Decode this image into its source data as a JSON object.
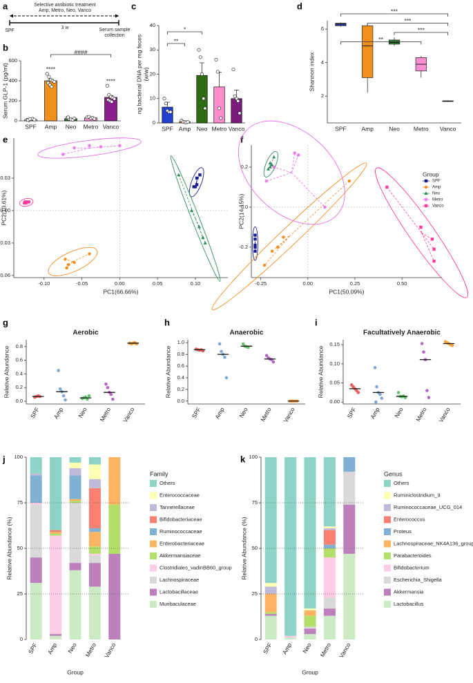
{
  "timeline": {
    "label": "a",
    "treatment": "Selective antibiotic treatment",
    "drugs": "Amp, Metro, Neo, Vanco",
    "start": "SPF",
    "duration": "3 w",
    "end": [
      "Serum sample",
      "collection"
    ]
  },
  "chart_data": [
    {
      "type": "bar",
      "label": "b",
      "ylabel": "Serum GLP-1 (pg/ml)",
      "categories": [
        "SPF",
        "Amp",
        "Neo",
        "Metro",
        "Vanco"
      ],
      "values": [
        13,
        400,
        22,
        30,
        235
      ],
      "errors": [
        3,
        15,
        4,
        4,
        18
      ],
      "points": [
        [
          10,
          5,
          15,
          20,
          12,
          8,
          18
        ],
        [
          470,
          440,
          410,
          400,
          390,
          380,
          360,
          340
        ],
        [
          30,
          20,
          15,
          10,
          25,
          35
        ],
        [
          35,
          40,
          25,
          30,
          20
        ],
        [
          350,
          260,
          240,
          230,
          220,
          210,
          200,
          190
        ]
      ],
      "colors": [
        "#ffffff",
        "#f0901c",
        "#2f7d1f",
        "#ff8fca",
        "#8c1d8c"
      ],
      "ylim": [
        0,
        600
      ],
      "yticks": [
        0,
        200,
        400,
        600
      ],
      "stars": [
        {
          "text": "****",
          "over": "Amp"
        },
        {
          "text": "****",
          "over": "Vanco"
        }
      ],
      "brackets": [
        {
          "text": "####",
          "between": [
            "Amp",
            "Vanco"
          ]
        }
      ]
    },
    {
      "type": "bar",
      "label": "c",
      "ylabel": [
        "ng bacterial DNA per mg feces",
        "(w/w)"
      ],
      "categories": [
        "SPF",
        "Amp",
        "Neo",
        "Metro",
        "Vanco"
      ],
      "values": [
        6.5,
        0.5,
        19.5,
        14.8,
        10
      ],
      "errors": [
        2,
        0.3,
        5.2,
        6,
        3.5
      ],
      "points": [
        [
          10,
          8,
          5,
          4.5,
          4.5
        ],
        [
          1,
          0.5,
          0.3,
          0.2,
          0.4
        ],
        [
          30,
          27,
          20,
          10,
          6
        ],
        [
          26,
          21,
          6,
          2
        ],
        [
          22,
          11,
          10,
          9,
          4
        ]
      ],
      "colors": [
        "#2040d0",
        "#f0901c",
        "#2f6b12",
        "#ff8ccc",
        "#7b1b7b"
      ],
      "ylim": [
        0,
        40
      ],
      "yticks": [
        0,
        10,
        20,
        30,
        40
      ],
      "brackets": [
        {
          "text": "*",
          "between": [
            "SPF",
            "Neo"
          ]
        },
        {
          "text": "**",
          "between": [
            "SPF",
            "Amp"
          ]
        }
      ]
    },
    {
      "type": "box",
      "label": "d",
      "ylabel": "Shannon index",
      "categories": [
        "SPF",
        "Amp",
        "Neo",
        "Metro",
        "Vanco"
      ],
      "boxes": [
        {
          "min": 6.15,
          "q1": 6.2,
          "median": 6.3,
          "q3": 6.35,
          "max": 6.4
        },
        {
          "min": 2.2,
          "q1": 3.1,
          "median": 5.0,
          "q3": 6.2,
          "max": 6.3
        },
        {
          "min": 5.0,
          "q1": 5.1,
          "median": 5.2,
          "q3": 5.35,
          "max": 5.5
        },
        {
          "min": 3.1,
          "q1": 3.5,
          "median": 3.9,
          "q3": 4.3,
          "max": 4.4
        },
        {
          "min": 1.65,
          "q1": 1.68,
          "median": 1.7,
          "q3": 1.72,
          "max": 1.75
        }
      ],
      "colors": [
        "#2e3ba8",
        "#f28e1c",
        "#2e7d32",
        "#f78fd0",
        "#9c27b0"
      ],
      "ylim": [
        0.4,
        6.5
      ],
      "yticks": [
        2,
        4,
        6
      ],
      "brackets": [
        {
          "text": "***",
          "between": [
            "SPF",
            "Vanco"
          ]
        },
        {
          "text": "***",
          "between": [
            "Amp",
            "Vanco"
          ]
        },
        {
          "text": "***",
          "between": [
            "Neo",
            "Vanco"
          ]
        },
        {
          "text": "**",
          "between": [
            "SPF",
            "Metro"
          ]
        }
      ]
    },
    {
      "type": "scatter",
      "label": "e",
      "xlabel": "PC1(66.66%)",
      "ylabel": "PC2(10.61%)",
      "xlim": [
        -0.14,
        0.143
      ],
      "ylim": [
        -0.062,
        0.067
      ],
      "xticks": [
        {
          "value": -0.1,
          "label": "-0.10"
        },
        -0.05,
        {
          "value": 0,
          "label": "0.00"
        },
        0.05,
        {
          "value": 0.1,
          "label": "0.10"
        }
      ],
      "yticks": [
        -0.06,
        -0.03,
        {
          "value": 0,
          "label": "0.00"
        },
        0.03
      ],
      "zero_lines": true,
      "series": [
        {
          "color": "#1a1f8c",
          "marker": "square",
          "x": [
            0.102,
            0.106,
            0.102,
            0.1,
            0.098
          ],
          "values": [
            0.03,
            0.033,
            0.024,
            0.022,
            0.022
          ]
        },
        {
          "color": "#f28a1e",
          "marker": "circle",
          "x": [
            -0.072,
            -0.07,
            -0.06,
            -0.04,
            -0.068
          ],
          "values": [
            -0.045,
            -0.053,
            -0.048,
            -0.04,
            -0.05
          ]
        },
        {
          "color": "#2e8b57",
          "marker": "triangle",
          "x": [
            0.078,
            0.095,
            0.105,
            0.11,
            0.113
          ],
          "values": [
            0.033,
            0.0,
            -0.015,
            -0.025,
            -0.03
          ]
        },
        {
          "color": "#e66ee6",
          "marker": "star",
          "x": [
            -0.075,
            -0.06,
            -0.04,
            -0.025,
            0.0
          ],
          "values": [
            0.052,
            0.058,
            0.06,
            0.059,
            0.06
          ]
        },
        {
          "color": "#ff3c9e",
          "marker": "square",
          "x": [
            -0.125,
            -0.124,
            -0.122,
            -0.126,
            -0.12
          ],
          "values": [
            0.008,
            0.007,
            0.008,
            0.007,
            0.008
          ]
        }
      ]
    },
    {
      "type": "scatter",
      "label": "f",
      "xlabel": "PC1(50.09%)",
      "ylabel": "PC2(14.15%)",
      "xlim": [
        -0.3,
        0.712
      ],
      "ylim": [
        -0.352,
        0.31
      ],
      "xticks": [
        -0.25,
        {
          "value": 0,
          "label": "0.00"
        },
        0.25,
        {
          "value": 0.5,
          "label": "0.50"
        }
      ],
      "yticks": [
        -0.2,
        {
          "value": 0,
          "label": "0.0"
        },
        0.2
      ],
      "zero_lines": true,
      "legend": {
        "title": "Group",
        "position": "right"
      },
      "series": [
        {
          "name": "SPF",
          "color": "#1a1f8c",
          "marker": "square",
          "x": [
            -0.28,
            -0.28,
            -0.28,
            -0.28,
            -0.28
          ],
          "values": [
            -0.14,
            -0.16,
            -0.19,
            -0.22,
            -0.2
          ]
        },
        {
          "name": "Amp",
          "color": "#f28a1e",
          "marker": "circle",
          "x": [
            -0.23,
            -0.19,
            -0.13,
            -0.16,
            0.22
          ],
          "values": [
            -0.29,
            -0.22,
            -0.15,
            -0.2,
            0.13
          ]
        },
        {
          "name": "Neo",
          "color": "#2e8b57",
          "marker": "triangle",
          "x": [
            -0.18,
            -0.2,
            -0.21,
            -0.19,
            -0.2
          ],
          "values": [
            0.25,
            0.22,
            0.19,
            0.21,
            0.2
          ]
        },
        {
          "name": "Metro",
          "color": "#e66ee6",
          "marker": "star",
          "x": [
            -0.22,
            -0.07,
            -0.05,
            0.09,
            -0.18
          ],
          "values": [
            0.13,
            0.27,
            0.26,
            0.0,
            0.2
          ]
        },
        {
          "name": "Vanco",
          "color": "#ff3c9e",
          "marker": "square",
          "x": [
            0.42,
            0.6,
            0.66,
            0.67,
            0.67
          ],
          "values": [
            0.1,
            -0.1,
            -0.16,
            -0.21,
            -0.27
          ]
        }
      ]
    },
    {
      "type": "dot",
      "label": "g",
      "title": "Aerobic",
      "ylabel": "Relative Abundance",
      "categories": [
        "SPF",
        "Amp",
        "Neo",
        "Metro",
        "Vanco"
      ],
      "points": [
        [
          0.06,
          0.07,
          0.08,
          0.07
        ],
        [
          0.45,
          0.18,
          0.14,
          0.08,
          0.02
        ],
        [
          0.04,
          0.05,
          0.06,
          0.03,
          0.08
        ],
        [
          0.25,
          0.2,
          0.13,
          0.1,
          0.03
        ],
        [
          0.85,
          0.84,
          0.85,
          0.86,
          0.84
        ]
      ],
      "medians": [
        0.07,
        0.14,
        0.05,
        0.13,
        0.85
      ],
      "colors": [
        "#e8605a",
        "#7ea7d8",
        "#62c36a",
        "#b566c5",
        "#f5a03c"
      ],
      "ylim": [
        -0.04,
        0.9
      ],
      "yticks": [
        {
          "value": 0,
          "label": "0.0"
        },
        0.2,
        0.4,
        0.6,
        0.8
      ]
    },
    {
      "type": "dot",
      "label": "h",
      "title": "Anaerobic",
      "ylabel": "Relative Abundance",
      "categories": [
        "SPF",
        "Amp",
        "Neo",
        "Metro",
        "Vanco"
      ],
      "points": [
        [
          0.89,
          0.88,
          0.87,
          0.88,
          0.86
        ],
        [
          0.98,
          0.85,
          0.8,
          0.75,
          0.4
        ],
        [
          0.98,
          0.94,
          0.93,
          0.92
        ],
        [
          0.78,
          0.74,
          0.72,
          0.71,
          0.67
        ],
        [
          0,
          0,
          0,
          0,
          0
        ]
      ],
      "medians": [
        0.88,
        0.8,
        0.94,
        0.72,
        0
      ],
      "colors": [
        "#e8605a",
        "#7ea7d8",
        "#62c36a",
        "#b566c5",
        "#f5a03c"
      ],
      "ylim": [
        -0.05,
        1.05
      ],
      "yticks": [
        {
          "value": 0,
          "label": "0.0"
        },
        0.2,
        0.4,
        0.6,
        0.8,
        {
          "value": 1,
          "label": "1.0"
        }
      ]
    },
    {
      "type": "dot",
      "label": "i",
      "title": "Facultatively Anaerobic",
      "ylabel": "Relative Abundance",
      "categories": [
        "SPF",
        "Amp",
        "Neo",
        "Metro",
        "Vanco"
      ],
      "points": [
        [
          0.045,
          0.04,
          0.035,
          0.03,
          0.025
        ],
        [
          0.09,
          0.04,
          0.025,
          0.02,
          0.01,
          0
        ],
        [
          0.025,
          0.015,
          0.014,
          0.016,
          0.012
        ],
        [
          0.153,
          0.131,
          0.111,
          0.03,
          0.012
        ],
        [
          0.158,
          0.155,
          0.153,
          0.15,
          0.148
        ]
      ],
      "medians": [
        0.035,
        0.025,
        0.015,
        0.111,
        0.153
      ],
      "colors": [
        "#e8605a",
        "#7ea7d8",
        "#62c36a",
        "#b566c5",
        "#f5a03c"
      ],
      "ylim": [
        -0.005,
        0.163
      ],
      "yticks": [
        {
          "value": 0,
          "label": "0.00"
        },
        0.05,
        {
          "value": 0.1,
          "label": "0.10"
        },
        0.15
      ]
    },
    {
      "type": "stacked",
      "label": "j",
      "ylabel": "Relative Abundance (%)",
      "xlabel": "Group",
      "categories": [
        "SPF",
        "Amp",
        "Neo",
        "Metro",
        "Vanco"
      ],
      "ylim": [
        0,
        100
      ],
      "yticks": [
        0,
        25,
        50,
        75,
        100
      ],
      "grid": "dotted",
      "legend": {
        "title": "Family",
        "position": "right"
      },
      "series": [
        {
          "name": "Muribaculaceae",
          "color": "#ccebc5",
          "values": [
            31,
            2,
            38,
            29,
            0
          ]
        },
        {
          "name": "Lactobacillaceae",
          "color": "#bc80bd",
          "values": [
            14,
            1,
            4,
            13,
            47
          ]
        },
        {
          "name": "Lachnospiraceae",
          "color": "#d9d9d9",
          "values": [
            29,
            0,
            33,
            4,
            0
          ]
        },
        {
          "name": "Clostridiales_vadinBB60_group",
          "color": "#fccde5",
          "values": [
            1,
            54,
            0,
            1,
            0
          ]
        },
        {
          "name": "Akkermansiaceae",
          "color": "#b3de69",
          "values": [
            0,
            1,
            1,
            4,
            27
          ]
        },
        {
          "name": "Enterobacteriaceae",
          "color": "#fdb462",
          "values": [
            0,
            1,
            1,
            8,
            26
          ]
        },
        {
          "name": "Ruminococcaceae",
          "color": "#80b1d3",
          "values": [
            15,
            0,
            13,
            2,
            0
          ]
        },
        {
          "name": "Bifidobacteriaceae",
          "color": "#fb8072",
          "values": [
            0,
            1,
            0,
            22,
            0
          ]
        },
        {
          "name": "Tannerellaceae",
          "color": "#bebada",
          "values": [
            1,
            0,
            4,
            5,
            0
          ]
        },
        {
          "name": "Enterococcaceae",
          "color": "#ffffb3",
          "values": [
            0,
            0,
            3,
            8,
            0
          ]
        },
        {
          "name": "Others",
          "color": "#8dd3c7",
          "values": [
            9,
            40,
            3,
            4,
            0
          ]
        }
      ]
    },
    {
      "type": "stacked",
      "label": "k",
      "ylabel": "Relative Abundance (%)",
      "xlabel": "Group",
      "categories": [
        "SPF",
        "Amp",
        "Neo",
        "Metro",
        "Vanco"
      ],
      "ylim": [
        0,
        100
      ],
      "yticks": [
        0,
        25,
        50,
        75,
        100
      ],
      "grid": "dotted",
      "legend": {
        "title": "Genus",
        "position": "right"
      },
      "series": [
        {
          "name": "Lactobacillus",
          "color": "#ccebc5",
          "values": [
            13,
            1,
            3,
            13,
            47
          ]
        },
        {
          "name": "Akkermansia",
          "color": "#bc80bd",
          "values": [
            1,
            0,
            3,
            4,
            27
          ]
        },
        {
          "name": "Escherichia_Shigella",
          "color": "#d9d9d9",
          "values": [
            0,
            0,
            1,
            6,
            18
          ]
        },
        {
          "name": "Bifidobacterium",
          "color": "#fccde5",
          "values": [
            0,
            1,
            0,
            22,
            0
          ]
        },
        {
          "name": "Parabacteroides",
          "color": "#b3de69",
          "values": [
            1,
            0,
            6,
            5,
            0
          ]
        },
        {
          "name": "Lachnospiraceae_NK4A136_group",
          "color": "#fdb462",
          "values": [
            10,
            0,
            3,
            0,
            0
          ]
        },
        {
          "name": "Proteus",
          "color": "#80b1d3",
          "values": [
            0,
            0,
            0,
            2,
            8
          ]
        },
        {
          "name": "Enterococcus",
          "color": "#fb8072",
          "values": [
            0,
            0,
            0,
            8,
            0
          ]
        },
        {
          "name": "Ruminococcaceae_UCG_014",
          "color": "#bebada",
          "values": [
            4,
            0,
            0,
            1,
            0
          ]
        },
        {
          "name": "Ruminiclostridium_9",
          "color": "#ffffb3",
          "values": [
            2,
            0,
            1,
            1,
            0
          ]
        },
        {
          "name": "Others",
          "color": "#8dd3c7",
          "values": [
            69,
            98,
            83,
            38,
            0
          ]
        }
      ]
    }
  ]
}
